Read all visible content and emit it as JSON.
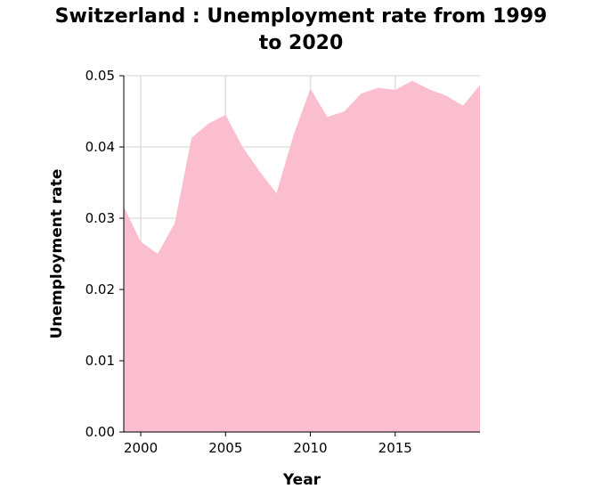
{
  "chart_data": {
    "type": "area",
    "title_lines": [
      "Switzerland : Unemployment rate from 1999",
      "to 2020"
    ],
    "xlabel": "Year",
    "ylabel": "Unemployment rate",
    "xlim": [
      1999,
      2020
    ],
    "ylim": [
      0,
      0.05
    ],
    "x_ticks": [
      2000,
      2005,
      2010,
      2015
    ],
    "y_ticks": [
      0.0,
      0.01,
      0.02,
      0.03,
      0.04,
      0.05
    ],
    "y_tick_labels": [
      "0.00",
      "0.01",
      "0.02",
      "0.03",
      "0.04",
      "0.05"
    ],
    "grid": true,
    "fill_color": "#fbbecf",
    "grid_color": "#e0e0e0",
    "x": [
      1999,
      2000,
      2001,
      2002,
      2003,
      2004,
      2005,
      2006,
      2007,
      2008,
      2009,
      2010,
      2011,
      2012,
      2013,
      2014,
      2015,
      2016,
      2017,
      2018,
      2019,
      2020
    ],
    "values": [
      0.0316,
      0.0267,
      0.025,
      0.0293,
      0.0413,
      0.0433,
      0.0445,
      0.04,
      0.0366,
      0.0335,
      0.0416,
      0.0482,
      0.0442,
      0.045,
      0.0475,
      0.0483,
      0.048,
      0.0493,
      0.0481,
      0.0472,
      0.0458,
      0.0487
    ]
  }
}
